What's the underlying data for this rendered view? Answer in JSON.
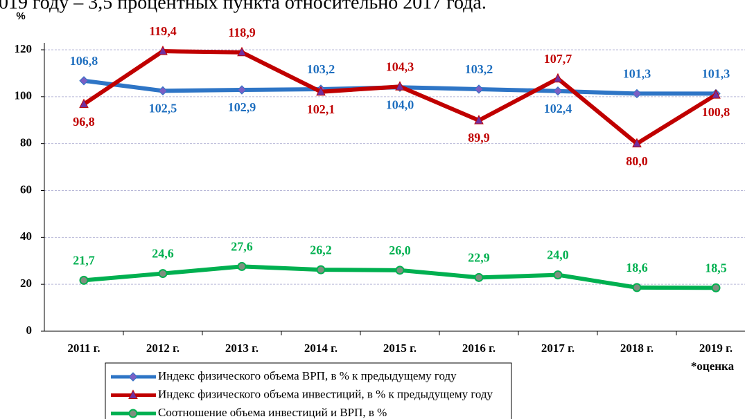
{
  "caption": "019 году – 3,5 процентных пункта относительно 2017 года.",
  "chart_data": {
    "type": "line",
    "ylabel": "%",
    "categories": [
      "2011 г.",
      "2012 г.",
      "2013 г.",
      "2014 г.",
      "2015 г.",
      "2016 г.",
      "2017 г.",
      "2018 г.",
      "2019 г."
    ],
    "annotation": "*оценка",
    "ylim": [
      0,
      120
    ],
    "yticks": [
      0,
      20,
      40,
      60,
      80,
      100,
      120
    ],
    "grid": true,
    "series": [
      {
        "name": "Индекс физического объема ВРП, в % к предыдущему году",
        "color": "#2e75c6",
        "marker": "diamond",
        "label_color": "#1f6fbf",
        "values": [
          106.8,
          102.5,
          102.9,
          103.2,
          104.0,
          103.2,
          102.4,
          101.3,
          101.3
        ],
        "value_labels": [
          "106,8",
          "102,5",
          "102,9",
          "103,2",
          "104,0",
          "103,2",
          "102,4",
          "101,3",
          "101,3"
        ]
      },
      {
        "name": "Индекс физического объема инвестиций, в % к предыдущему году",
        "color": "#c00000",
        "marker": "triangle",
        "label_color": "#c00000",
        "values": [
          96.8,
          119.4,
          118.9,
          102.1,
          104.3,
          89.9,
          107.7,
          80.0,
          100.8
        ],
        "value_labels": [
          "96,8",
          "119,4",
          "118,9",
          "102,1",
          "104,3",
          "89,9",
          "107,7",
          "80,0",
          "100,8"
        ]
      },
      {
        "name": "Соотношение объема инвестиций и ВРП, в %",
        "color": "#00b050",
        "marker": "circle",
        "label_color": "#00b050",
        "values": [
          21.7,
          24.6,
          27.6,
          26.2,
          26.0,
          22.9,
          24.0,
          18.6,
          18.5
        ],
        "value_labels": [
          "21,7",
          "24,6",
          "27,6",
          "26,2",
          "26,0",
          "22,9",
          "24,0",
          "18,6",
          "18,5"
        ]
      }
    ]
  }
}
